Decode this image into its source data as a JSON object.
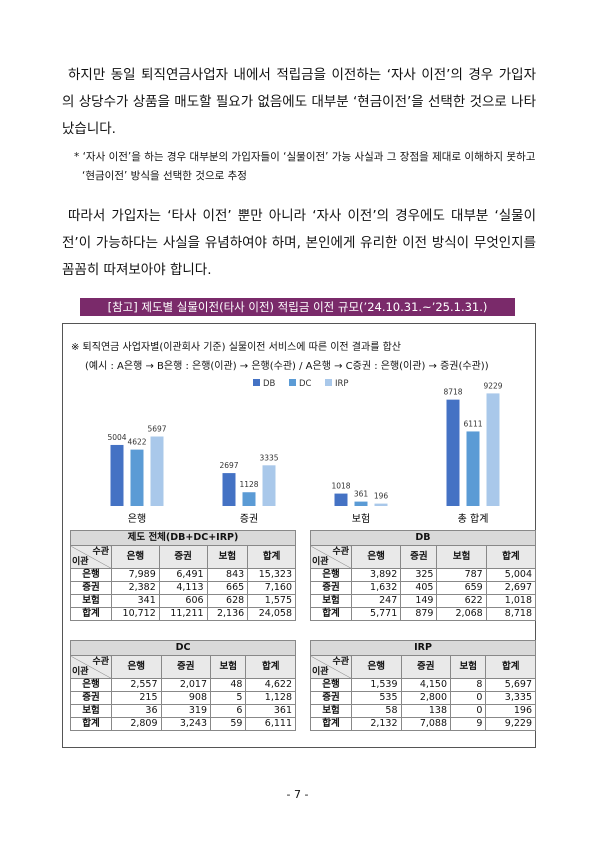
{
  "paragraphs": [
    "하지만 동일 퇴직연금사업자 내에서 적립금을 이전하는 ‘자사 이전’의 경우 가입자의 상당수가 상품을 매도할 필요가 없음에도 대부분 ‘현금이전’을 선택한 것으로 나타났습니다.",
    "따라서 가입자는 ‘타사 이전’ 뿐만 아니라 ‘자사 이전’의 경우에도 대부분 ‘실물이전’이 가능하다는 사실을 유념하여야 하며, 본인에게 유리한 이전 방식이 무엇인지를 꼼꼼히 따져보아야 합니다."
  ],
  "note": "* ‘자사 이전’을 하는 경우 대부분의 가입자들이 ‘실물이전’ 가능 사실과 그 장점을 제대로 이해하지 못하고 ‘현금이전’ 방식을 선택한 것으로 추정",
  "reference_title": "[참고] 제도별 실물이전(타사 이전) 적립금 이전 규모(’24.10.31.~’25.1.31.)",
  "box_notes": [
    "※ 퇴직연금 사업자별(이관회사 기준) 실물이전 서비스에 따른 이전 결과를 합산",
    "(예시 : A은행 → B은행 : 은행(이관) → 은행(수관) / A은행 → C증권 : 은행(이관) → 증권(수관))"
  ],
  "chart_data": {
    "type": "bar",
    "categories": [
      "은행",
      "증권",
      "보험",
      "총 합계"
    ],
    "series": [
      {
        "name": "DB",
        "color": "#4472c4",
        "values": [
          5004,
          2697,
          1018,
          8718
        ]
      },
      {
        "name": "DC",
        "color": "#5b9bd5",
        "values": [
          4622,
          1128,
          361,
          6111
        ]
      },
      {
        "name": "IRP",
        "color": "#a9c8ea",
        "values": [
          5697,
          3335,
          196,
          9229
        ]
      }
    ],
    "legend": "top"
  },
  "tables": [
    {
      "title": "제도 전체(DB+DC+IRP)",
      "col_header": "수관",
      "row_header": "이관",
      "columns": [
        "은행",
        "증권",
        "보험",
        "합계"
      ],
      "rows": [
        {
          "label": "은행",
          "cells": [
            "7,989",
            "6,491",
            "843",
            "15,323"
          ]
        },
        {
          "label": "증권",
          "cells": [
            "2,382",
            "4,113",
            "665",
            "7,160"
          ]
        },
        {
          "label": "보험",
          "cells": [
            "341",
            "606",
            "628",
            "1,575"
          ]
        },
        {
          "label": "합계",
          "cells": [
            "10,712",
            "11,211",
            "2,136",
            "24,058"
          ]
        }
      ]
    },
    {
      "title": "DB",
      "col_header": "수관",
      "row_header": "이관",
      "columns": [
        "은행",
        "증권",
        "보험",
        "합계"
      ],
      "rows": [
        {
          "label": "은행",
          "cells": [
            "3,892",
            "325",
            "787",
            "5,004"
          ]
        },
        {
          "label": "증권",
          "cells": [
            "1,632",
            "405",
            "659",
            "2,697"
          ]
        },
        {
          "label": "보험",
          "cells": [
            "247",
            "149",
            "622",
            "1,018"
          ]
        },
        {
          "label": "합계",
          "cells": [
            "5,771",
            "879",
            "2,068",
            "8,718"
          ]
        }
      ]
    },
    {
      "title": "DC",
      "col_header": "수관",
      "row_header": "이관",
      "columns": [
        "은행",
        "증권",
        "보험",
        "합계"
      ],
      "rows": [
        {
          "label": "은행",
          "cells": [
            "2,557",
            "2,017",
            "48",
            "4,622"
          ]
        },
        {
          "label": "증권",
          "cells": [
            "215",
            "908",
            "5",
            "1,128"
          ]
        },
        {
          "label": "보험",
          "cells": [
            "36",
            "319",
            "6",
            "361"
          ]
        },
        {
          "label": "합계",
          "cells": [
            "2,809",
            "3,243",
            "59",
            "6,111"
          ]
        }
      ]
    },
    {
      "title": "IRP",
      "col_header": "수관",
      "row_header": "이관",
      "columns": [
        "은행",
        "증권",
        "보험",
        "합계"
      ],
      "rows": [
        {
          "label": "은행",
          "cells": [
            "1,539",
            "4,150",
            "8",
            "5,697"
          ]
        },
        {
          "label": "증권",
          "cells": [
            "535",
            "2,800",
            "0",
            "3,335"
          ]
        },
        {
          "label": "보험",
          "cells": [
            "58",
            "138",
            "0",
            "196"
          ]
        },
        {
          "label": "합계",
          "cells": [
            "2,132",
            "7,088",
            "9",
            "9,229"
          ]
        }
      ]
    }
  ],
  "footer": "- 7 -"
}
